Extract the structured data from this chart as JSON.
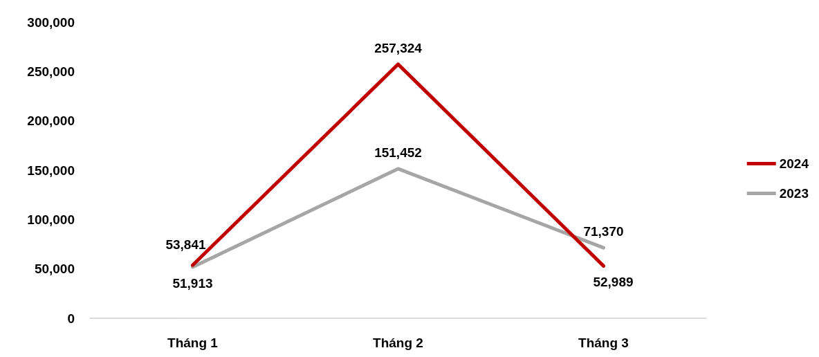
{
  "chart_data": {
    "type": "line",
    "categories": [
      "Tháng 1",
      "Tháng 2",
      "Tháng 3"
    ],
    "series": [
      {
        "name": "2024",
        "color": "#c00000",
        "values": [
          53841,
          257324,
          52989
        ],
        "value_labels": [
          "53,841",
          "257,324",
          "52,989"
        ]
      },
      {
        "name": "2023",
        "color": "#a6a6a6",
        "values": [
          51913,
          151452,
          71370
        ],
        "value_labels": [
          "51,913",
          "151,452",
          "71,370"
        ]
      }
    ],
    "ylim": [
      0,
      300000
    ],
    "yticks": [
      0,
      {
        "value": 50000,
        "label": "50,000"
      },
      {
        "value": 100000,
        "label": "100,000"
      },
      {
        "value": 150000,
        "label": "150,000"
      },
      {
        "value": 200000,
        "label": "200,000"
      },
      {
        "value": 250000,
        "label": "250,000"
      },
      {
        "value": 300000,
        "label": "300,000"
      }
    ],
    "grid": false,
    "legend": "right",
    "marker": "none",
    "line_style": "solid"
  }
}
